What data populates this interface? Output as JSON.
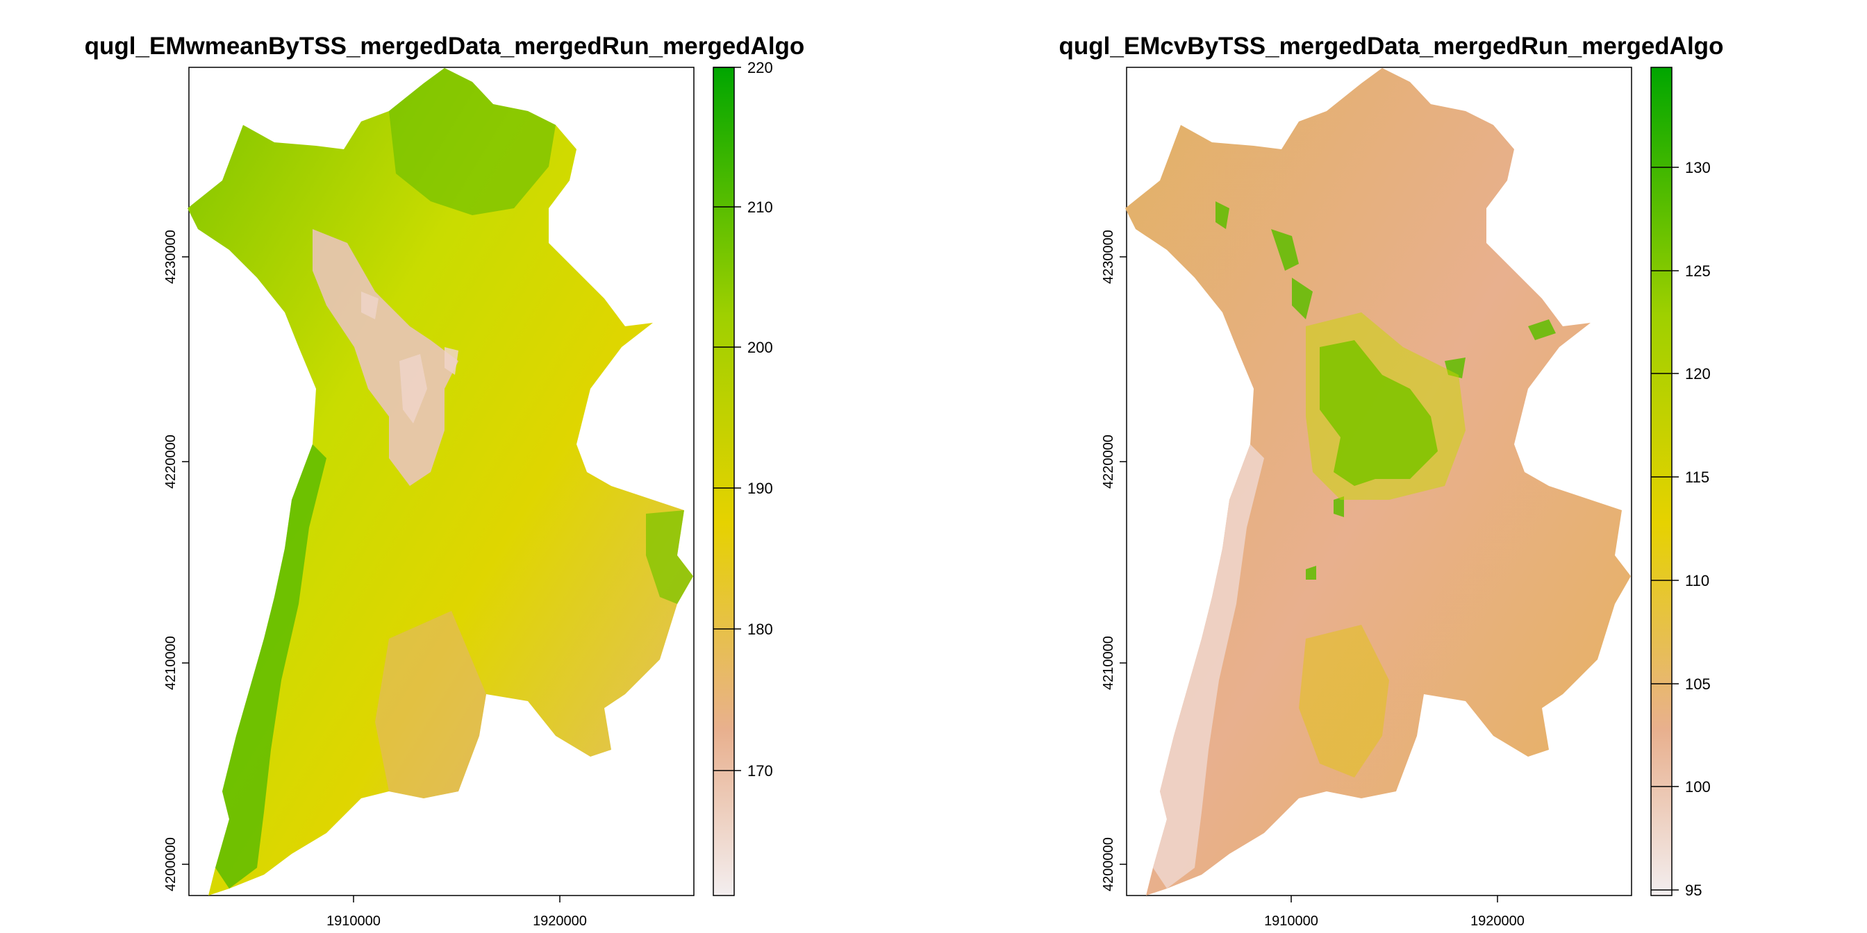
{
  "panels": [
    {
      "title": "qugl_EMwmeanByTSS_mergedData_mergedRun_mergedAlgo",
      "x_ticks": [
        "1910000",
        "1920000"
      ],
      "y_ticks": [
        "4200000",
        "4210000",
        "4220000",
        "4230000"
      ],
      "legend_ticks": [
        "170",
        "180",
        "190",
        "200",
        "210",
        "220"
      ],
      "legend_range": [
        160,
        220
      ],
      "colors": {
        "low": "#f3eeef",
        "mid_low": "#e8b08e",
        "mid": "#e6d200",
        "mid_high": "#9fd000",
        "high": "#00a600"
      }
    },
    {
      "title": "qugl_EMcvByTSS_mergedData_mergedRun_mergedAlgo",
      "x_ticks": [
        "1910000",
        "1920000"
      ],
      "y_ticks": [
        "4200000",
        "4210000",
        "4220000",
        "4230000"
      ],
      "legend_ticks": [
        "95",
        "100",
        "105",
        "110",
        "115",
        "120",
        "125",
        "130"
      ],
      "legend_range": [
        95,
        134
      ],
      "colors": {
        "low": "#f3eeef",
        "mid_low": "#e8b08e",
        "mid": "#e6d200",
        "mid_high": "#9fd000",
        "high": "#00a600"
      }
    }
  ]
}
